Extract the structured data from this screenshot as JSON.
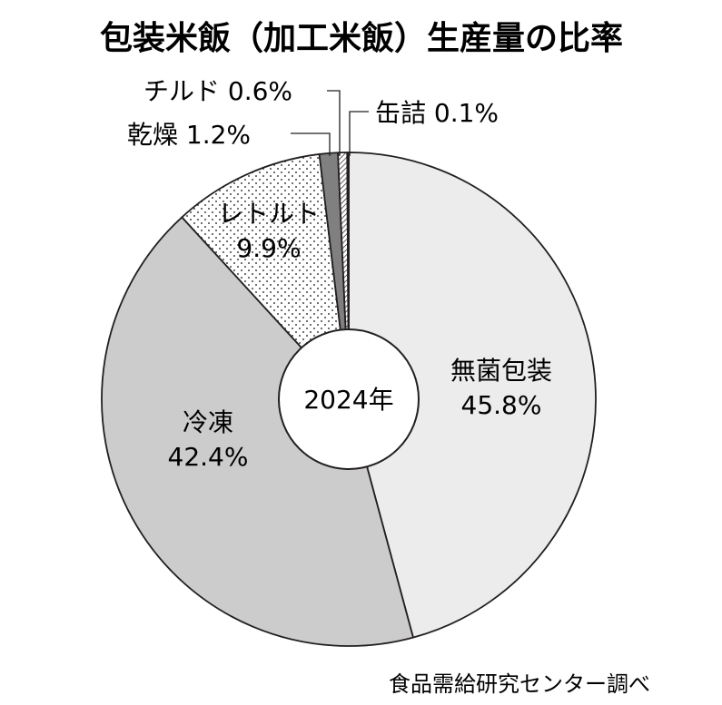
{
  "chart_data": {
    "type": "pie",
    "title": "包装米飯（加工米飯）生産量の比率",
    "center_label": "2024年",
    "source": "食品需給研究センター調べ",
    "slices": [
      {
        "name": "無菌包装",
        "value": 45.8,
        "value_label": "45.8%",
        "color": "#ececec",
        "pattern": "none"
      },
      {
        "name": "冷凍",
        "value": 42.4,
        "value_label": "42.4%",
        "color": "#cccccc",
        "pattern": "none"
      },
      {
        "name": "レトルト",
        "value": 9.9,
        "value_label": "9.9%",
        "color": "#ffffff",
        "pattern": "dots"
      },
      {
        "name": "乾燥",
        "value": 1.2,
        "value_label": "1.2%",
        "color": "#808080",
        "pattern": "none"
      },
      {
        "name": "チルド",
        "value": 0.6,
        "value_label": "0.6%",
        "color": "#ffffff",
        "pattern": "hatch"
      },
      {
        "name": "缶詰",
        "value": 0.1,
        "value_label": "0.1%",
        "color": "#333333",
        "pattern": "none"
      }
    ]
  },
  "labels": {
    "musen_name": "無菌包装",
    "musen_value": "45.8%",
    "reito_name": "冷凍",
    "reito_value": "42.4%",
    "retort_name": "レトルト",
    "retort_value": "9.9%",
    "kanso": "乾燥 1.2%",
    "chilled": "チルド 0.6%",
    "kanzume": "缶詰 0.1%"
  }
}
